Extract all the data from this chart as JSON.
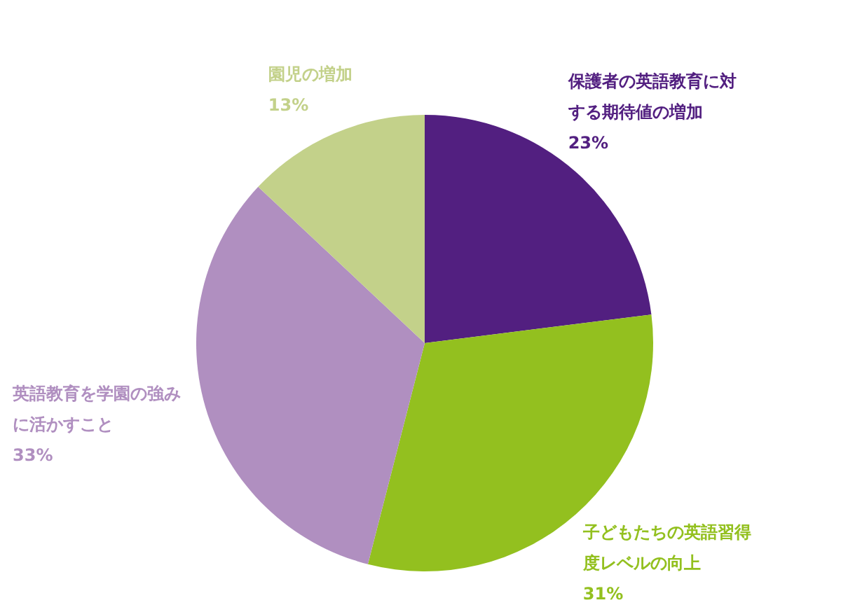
{
  "chart_data": {
    "type": "pie",
    "categories": [
      "保護者の英語教育に対する期待値の増加",
      "子どもたちの英語習得度レベルの向上",
      "英語教育を学園の強みに活かすこと",
      "園児の増加"
    ],
    "values": [
      23,
      31,
      33,
      13
    ],
    "colors": [
      "#521f80",
      "#93c01f",
      "#b08fc0",
      "#c3d18a"
    ],
    "value_labels": [
      "23%",
      "31%",
      "33%",
      "13%"
    ]
  }
}
